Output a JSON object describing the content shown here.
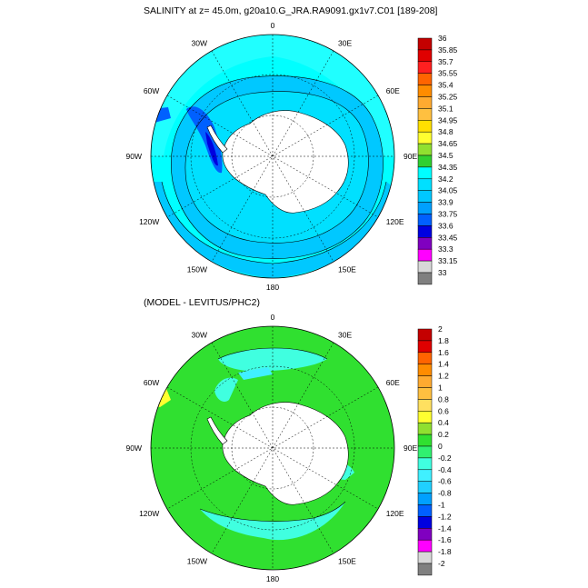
{
  "top_panel": {
    "title": "SALINITY at z=  45.0m, g20a10.G_JRA.RA9091.gx1v7.C01 [189-208]",
    "lon_labels": [
      "0",
      "30E",
      "60E",
      "90E",
      "120E",
      "150E",
      "180",
      "150W",
      "120W",
      "90W",
      "60W",
      "30W"
    ],
    "colorbar": {
      "levels": [
        "36",
        "35.85",
        "35.7",
        "35.55",
        "35.4",
        "35.25",
        "35.1",
        "34.95",
        "34.8",
        "34.65",
        "34.5",
        "34.35",
        "34.2",
        "34.05",
        "33.9",
        "33.75",
        "33.6",
        "33.45",
        "33.3",
        "33.15",
        "33"
      ],
      "colors": [
        "#c40000",
        "#e00000",
        "#ff2020",
        "#ff6400",
        "#ff8c00",
        "#ffaa30",
        "#ffc040",
        "#ffe000",
        "#ffff30",
        "#90e030",
        "#30d030",
        "#00ffff",
        "#00e0ff",
        "#00c8ff",
        "#00a0ff",
        "#0060ff",
        "#0000e0",
        "#8000c0",
        "#ff00ff",
        "#d8d8d8"
      ],
      "bottom_color": "#808080"
    }
  },
  "bottom_panel": {
    "title": "(MODEL - LEVITUS/PHC2)",
    "lon_labels": [
      "0",
      "30E",
      "60E",
      "90E",
      "120E",
      "150E",
      "180",
      "150W",
      "120W",
      "90W",
      "60W",
      "30W"
    ],
    "colorbar": {
      "levels": [
        "2",
        "1.8",
        "1.6",
        "1.4",
        "1.2",
        "1",
        "0.8",
        "0.6",
        "0.4",
        "0.2",
        "0",
        "-0.2",
        "-0.4",
        "-0.6",
        "-0.8",
        "-1",
        "-1.2",
        "-1.4",
        "-1.6",
        "-1.8",
        "-2"
      ],
      "colors": [
        "#c40000",
        "#e00000",
        "#ff6400",
        "#ff8c00",
        "#ffaa30",
        "#ffc040",
        "#ffe060",
        "#ffff30",
        "#90e030",
        "#30e030",
        "#30f070",
        "#40ffe0",
        "#40f0ff",
        "#20d0ff",
        "#00a0ff",
        "#0060ff",
        "#0000e0",
        "#8000c0",
        "#ff00ff",
        "#d8d8d8"
      ],
      "bottom_color": "#808080"
    }
  }
}
